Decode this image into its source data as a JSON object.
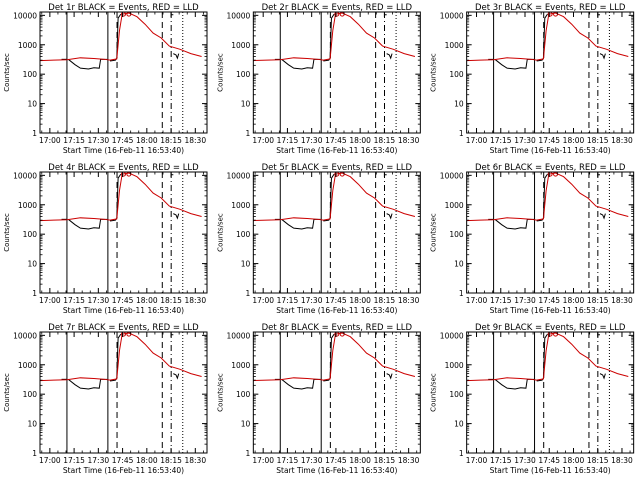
{
  "chart_data": [
    {
      "type": "line",
      "title": "Det 1r BLACK = Events, RED = LLD"
    },
    {
      "type": "line",
      "title": "Det 2r BLACK = Events, RED = LLD"
    },
    {
      "type": "line",
      "title": "Det 3r BLACK = Events, RED = LLD"
    },
    {
      "type": "line",
      "title": "Det 4r BLACK = Events, RED = LLD"
    },
    {
      "type": "line",
      "title": "Det 5r BLACK = Events, RED = LLD"
    },
    {
      "type": "line",
      "title": "Det 6r BLACK = Events, RED = LLD"
    },
    {
      "type": "line",
      "title": "Det 7r BLACK = Events, RED = LLD"
    },
    {
      "type": "line",
      "title": "Det 8r BLACK = Events, RED = LLD"
    },
    {
      "type": "line",
      "title": "Det 9r BLACK = Events, RED = LLD"
    }
  ],
  "common": {
    "xlabel": "Start Time (16-Feb-11 16:53:40)",
    "ylabel": "Counts/sec",
    "x_ticks": [
      {
        "label": "17:00",
        "t": 366
      },
      {
        "label": "17:15",
        "t": 1266
      },
      {
        "label": "17:30",
        "t": 2166
      },
      {
        "label": "17:45",
        "t": 3066
      },
      {
        "label": "18:00",
        "t": 3966
      },
      {
        "label": "18:15",
        "t": 4866
      },
      {
        "label": "18:30",
        "t": 5766
      }
    ],
    "xlim_seconds": [
      0,
      6200
    ],
    "y_ticks": [
      {
        "label": "1",
        "v": 1
      },
      {
        "label": "10",
        "v": 10
      },
      {
        "label": "100",
        "v": 100
      },
      {
        "label": "1000",
        "v": 1000
      },
      {
        "label": "10000",
        "v": 10000
      }
    ],
    "ylim": [
      1,
      13000
    ],
    "yscale": "log",
    "vlines": [
      {
        "t": 1000,
        "style": "solid"
      },
      {
        "t": 2520,
        "style": "solid"
      },
      {
        "t": 2860,
        "style": "dashed"
      },
      {
        "t": 4540,
        "style": "dashed"
      },
      {
        "t": 4870,
        "style": "dashdot"
      },
      {
        "t": 5300,
        "style": "dotted"
      }
    ],
    "events_series": {
      "name": "Events",
      "color": "#000000",
      "segments": [
        [
          [
            800,
            320
          ],
          [
            1000,
            320
          ]
        ],
        [
          [
            1050,
            320
          ],
          [
            1300,
            210
          ],
          [
            1500,
            160
          ],
          [
            1800,
            150
          ],
          [
            2000,
            165
          ],
          [
            2200,
            160
          ],
          [
            2250,
            320
          ],
          [
            2500,
            320
          ]
        ],
        [
          [
            2600,
            280
          ],
          [
            2800,
            300
          ],
          [
            2850,
            350
          ],
          [
            2900,
            8000
          ],
          [
            3000,
            11000
          ]
        ],
        [
          [
            4850,
            10500
          ],
          [
            4950,
            10500
          ]
        ],
        [
          [
            4950,
            500
          ],
          [
            5050,
            450
          ],
          [
            5100,
            350
          ],
          [
            5150,
            500
          ]
        ]
      ]
    },
    "lld_series": {
      "name": "LLD",
      "color": "#cc0000",
      "points": [
        [
          0,
          290
        ],
        [
          500,
          300
        ],
        [
          1000,
          310
        ],
        [
          1500,
          360
        ],
        [
          2000,
          340
        ],
        [
          2400,
          320
        ],
        [
          2600,
          300
        ],
        [
          2850,
          330
        ],
        [
          2950,
          3000
        ],
        [
          3050,
          11000
        ],
        [
          3300,
          12000
        ],
        [
          3600,
          9000
        ],
        [
          3900,
          5000
        ],
        [
          4200,
          2500
        ],
        [
          4500,
          1700
        ],
        [
          4800,
          900
        ],
        [
          5200,
          700
        ],
        [
          5600,
          500
        ],
        [
          6000,
          400
        ]
      ]
    },
    "markers": [
      [
        3100,
        11000
      ],
      [
        3300,
        11000
      ]
    ]
  }
}
